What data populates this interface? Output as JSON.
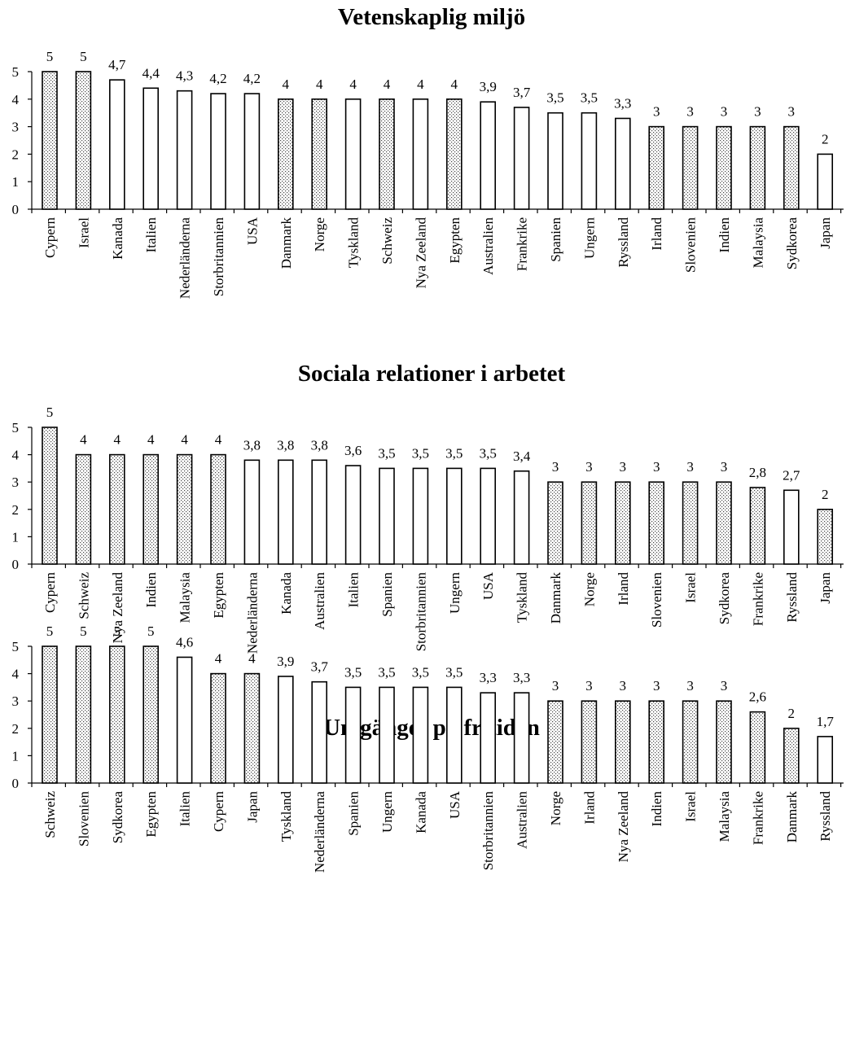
{
  "chart_data": [
    {
      "type": "bar",
      "title": "Vetenskaplig miljö",
      "ylim": [
        0,
        5
      ],
      "yticks": [
        "0",
        "1",
        "2",
        "3",
        "4",
        "5"
      ],
      "categories": [
        "Cypern",
        "Israel",
        "Kanada",
        "Italien",
        "Nederländerna",
        "Storbritannien",
        "USA",
        "Danmark",
        "Norge",
        "Tyskland",
        "Schweiz",
        "Nya Zeeland",
        "Egypten",
        "Australien",
        "Frankrike",
        "Spanien",
        "Ungern",
        "Ryssland",
        "Irland",
        "Slovenien",
        "Indien",
        "Malaysia",
        "Sydkorea",
        "Japan"
      ],
      "values": [
        5,
        5,
        4.7,
        4.4,
        4.3,
        4.2,
        4.2,
        4,
        4,
        4,
        4,
        4,
        4,
        3.9,
        3.7,
        3.5,
        3.5,
        3.3,
        3,
        3,
        3,
        3,
        3,
        2
      ],
      "value_labels": [
        "5",
        "5",
        "4,7",
        "4,4",
        "4,3",
        "4,2",
        "4,2",
        "4",
        "4",
        "4",
        "4",
        "4",
        "4",
        "3,9",
        "3,7",
        "3,5",
        "3,5",
        "3,3",
        "3",
        "3",
        "3",
        "3",
        "3",
        "2"
      ],
      "dotted": [
        true,
        true,
        false,
        false,
        false,
        false,
        false,
        true,
        true,
        false,
        true,
        false,
        true,
        false,
        false,
        false,
        false,
        false,
        true,
        true,
        true,
        true,
        true,
        false
      ],
      "grid": false,
      "legend": "none"
    },
    {
      "type": "bar",
      "title": "Sociala relationer i arbetet",
      "ylim": [
        0,
        5
      ],
      "yticks": [
        "0",
        "1",
        "2",
        "3",
        "4",
        "5"
      ],
      "categories": [
        "Cypern",
        "Schweiz",
        "Nya Zeeland",
        "Indien",
        "Malaysia",
        "Egypten",
        "Nederländerna",
        "Kanada",
        "Australien",
        "Italien",
        "Spanien",
        "Storbritannien",
        "Ungern",
        "USA",
        "Tyskland",
        "Danmark",
        "Norge",
        "Irland",
        "Slovenien",
        "Israel",
        "Sydkorea",
        "Frankrike",
        "Ryssland",
        "Japan"
      ],
      "values": [
        5,
        4,
        4,
        4,
        4,
        4,
        3.8,
        3.8,
        3.8,
        3.6,
        3.5,
        3.5,
        3.5,
        3.5,
        3.4,
        3,
        3,
        3,
        3,
        3,
        3,
        2.8,
        2.7,
        2
      ],
      "value_labels": [
        "5",
        "4",
        "4",
        "4",
        "4",
        "4",
        "3,8",
        "3,8",
        "3,8",
        "3,6",
        "3,5",
        "3,5",
        "3,5",
        "3,5",
        "3,4",
        "3",
        "3",
        "3",
        "3",
        "3",
        "3",
        "2,8",
        "2,7",
        "2"
      ],
      "dotted": [
        true,
        true,
        true,
        true,
        true,
        true,
        false,
        false,
        false,
        false,
        false,
        false,
        false,
        false,
        false,
        true,
        true,
        true,
        true,
        true,
        true,
        true,
        false,
        true
      ],
      "grid": false,
      "legend": "none"
    },
    {
      "type": "bar",
      "title": "Umgänget på fritiden",
      "ylim": [
        0,
        5
      ],
      "yticks": [
        "0",
        "1",
        "2",
        "3",
        "4",
        "5"
      ],
      "categories": [
        "Schweiz",
        "Slovenien",
        "Sydkorea",
        "Egypten",
        "Italien",
        "Cypern",
        "Japan",
        "Tyskland",
        "Nederländerna",
        "Spanien",
        "Ungern",
        "Kanada",
        "USA",
        "Storbritannien",
        "Australien",
        "Norge",
        "Irland",
        "Nya Zeeland",
        "Indien",
        "Israel",
        "Malaysia",
        "Frankrike",
        "Danmark",
        "Ryssland"
      ],
      "values": [
        5,
        5,
        5,
        5,
        4.6,
        4,
        4,
        3.9,
        3.7,
        3.5,
        3.5,
        3.5,
        3.5,
        3.3,
        3.3,
        3,
        3,
        3,
        3,
        3,
        3,
        2.6,
        2,
        1.7
      ],
      "value_labels": [
        "5",
        "5",
        "5",
        "5",
        "4,6",
        "4",
        "4",
        "3,9",
        "3,7",
        "3,5",
        "3,5",
        "3,5",
        "3,5",
        "3,3",
        "3,3",
        "3",
        "3",
        "3",
        "3",
        "3",
        "3",
        "2,6",
        "2",
        "1,7"
      ],
      "dotted": [
        true,
        true,
        true,
        true,
        false,
        true,
        true,
        false,
        false,
        false,
        false,
        false,
        false,
        false,
        false,
        true,
        true,
        true,
        true,
        true,
        true,
        true,
        true,
        false
      ],
      "grid": false,
      "legend": "none"
    }
  ]
}
